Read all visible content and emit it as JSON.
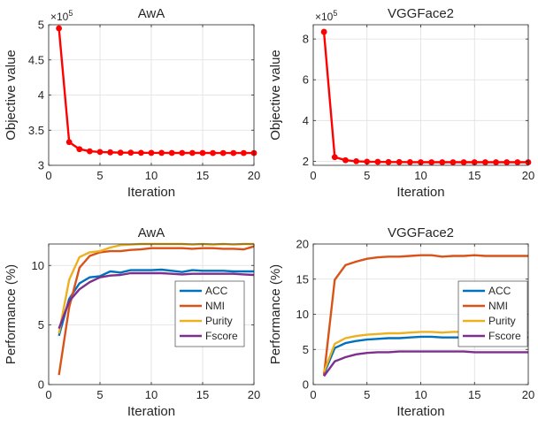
{
  "chart_data": [
    {
      "type": "line",
      "title": "AwA",
      "xlabel": "Iteration",
      "ylabel": "Objective value",
      "exponent_label": "×10^5",
      "exponent_base": "×10",
      "exponent_power": "5",
      "xlim": [
        0,
        20
      ],
      "ylim": [
        3,
        5
      ],
      "xticks": [
        0,
        5,
        10,
        15,
        20
      ],
      "yticks": [
        3,
        3.5,
        4,
        4.5,
        5
      ],
      "yticklabels": [
        "3",
        "3.5",
        "4",
        "4.5",
        "5"
      ],
      "grid": true,
      "x": [
        1,
        2,
        3,
        4,
        5,
        6,
        7,
        8,
        9,
        10,
        11,
        12,
        13,
        14,
        15,
        16,
        17,
        18,
        19,
        20
      ],
      "series": [
        {
          "color": "#ff0000",
          "marker": "circle",
          "values": [
            4.95,
            3.33,
            3.23,
            3.2,
            3.19,
            3.185,
            3.18,
            3.18,
            3.178,
            3.177,
            3.177,
            3.176,
            3.176,
            3.176,
            3.176,
            3.175,
            3.175,
            3.175,
            3.175,
            3.175
          ]
        }
      ]
    },
    {
      "type": "line",
      "title": "VGGFace2",
      "xlabel": "Iteration",
      "ylabel": "Objective value",
      "exponent_label": "×10^5",
      "exponent_base": "×10",
      "exponent_power": "5",
      "xlim": [
        0,
        20
      ],
      "ylim": [
        1.8,
        8.7
      ],
      "xticks": [
        0,
        5,
        10,
        15,
        20
      ],
      "yticks": [
        2,
        4,
        6,
        8
      ],
      "yticklabels": [
        "2",
        "4",
        "6",
        "8"
      ],
      "grid": true,
      "x": [
        1,
        2,
        3,
        4,
        5,
        6,
        7,
        8,
        9,
        10,
        11,
        12,
        13,
        14,
        15,
        16,
        17,
        18,
        19,
        20
      ],
      "series": [
        {
          "color": "#ff0000",
          "marker": "circle",
          "values": [
            8.35,
            2.2,
            2.05,
            2.0,
            1.98,
            1.97,
            1.96,
            1.96,
            1.955,
            1.95,
            1.95,
            1.95,
            1.95,
            1.95,
            1.95,
            1.95,
            1.95,
            1.95,
            1.95,
            1.95
          ]
        }
      ]
    },
    {
      "type": "line",
      "title": "AwA",
      "xlabel": "Iteration",
      "ylabel": "Performance (%)",
      "xlim": [
        0,
        20
      ],
      "ylim": [
        0,
        11.8
      ],
      "xticks": [
        0,
        5,
        10,
        15,
        20
      ],
      "yticks": [
        0,
        5,
        10
      ],
      "yticklabels": [
        "0",
        "5",
        "10"
      ],
      "grid": true,
      "legend": "right",
      "x": [
        1,
        2,
        3,
        4,
        5,
        6,
        7,
        8,
        9,
        10,
        11,
        12,
        13,
        14,
        15,
        16,
        17,
        18,
        19,
        20
      ],
      "series": [
        {
          "name": "ACC",
          "color": "#0072bd",
          "values": [
            4.1,
            7.2,
            8.5,
            9.0,
            9.1,
            9.5,
            9.4,
            9.6,
            9.6,
            9.6,
            9.65,
            9.55,
            9.45,
            9.6,
            9.55,
            9.55,
            9.55,
            9.5,
            9.5,
            9.5
          ]
        },
        {
          "name": "NMI",
          "color": "#d95319",
          "values": [
            0.8,
            6.5,
            9.8,
            10.8,
            11.1,
            11.2,
            11.2,
            11.3,
            11.35,
            11.45,
            11.45,
            11.45,
            11.45,
            11.4,
            11.45,
            11.45,
            11.4,
            11.4,
            11.35,
            11.6
          ]
        },
        {
          "name": "Purity",
          "color": "#edb120",
          "values": [
            4.3,
            8.8,
            10.7,
            11.1,
            11.2,
            11.5,
            11.7,
            11.75,
            11.8,
            11.8,
            11.8,
            11.8,
            11.8,
            11.75,
            11.8,
            11.75,
            11.8,
            11.75,
            11.8,
            11.8
          ]
        },
        {
          "name": "Fscore",
          "color": "#7e2f8e",
          "values": [
            4.7,
            7.0,
            8.0,
            8.6,
            9.0,
            9.15,
            9.2,
            9.35,
            9.35,
            9.35,
            9.35,
            9.3,
            9.25,
            9.3,
            9.3,
            9.3,
            9.3,
            9.3,
            9.25,
            9.2
          ]
        }
      ]
    },
    {
      "type": "line",
      "title": "VGGFace2",
      "xlabel": "Iteration",
      "ylabel": "Performance (%)",
      "xlim": [
        0,
        20
      ],
      "ylim": [
        0,
        20
      ],
      "xticks": [
        0,
        5,
        10,
        15,
        20
      ],
      "yticks": [
        0,
        5,
        10,
        15,
        20
      ],
      "yticklabels": [
        "0",
        "5",
        "10",
        "15",
        "20"
      ],
      "grid": true,
      "legend": "right",
      "x": [
        1,
        2,
        3,
        4,
        5,
        6,
        7,
        8,
        9,
        10,
        11,
        12,
        13,
        14,
        15,
        16,
        17,
        18,
        19,
        20
      ],
      "series": [
        {
          "name": "ACC",
          "color": "#0072bd",
          "values": [
            1.5,
            5.2,
            5.9,
            6.2,
            6.4,
            6.5,
            6.6,
            6.6,
            6.7,
            6.8,
            6.8,
            6.7,
            6.7,
            6.7,
            6.8,
            6.7,
            6.7,
            6.6,
            6.8,
            6.7
          ]
        },
        {
          "name": "NMI",
          "color": "#d95319",
          "values": [
            1.3,
            14.9,
            17.0,
            17.5,
            17.9,
            18.1,
            18.2,
            18.2,
            18.3,
            18.4,
            18.4,
            18.2,
            18.3,
            18.3,
            18.4,
            18.3,
            18.3,
            18.3,
            18.3,
            18.3
          ]
        },
        {
          "name": "Purity",
          "color": "#edb120",
          "values": [
            1.8,
            5.8,
            6.6,
            6.9,
            7.1,
            7.2,
            7.3,
            7.3,
            7.4,
            7.5,
            7.5,
            7.4,
            7.5,
            7.5,
            7.4,
            7.4,
            7.5,
            7.5,
            7.4,
            7.4
          ]
        },
        {
          "name": "Fscore",
          "color": "#7e2f8e",
          "values": [
            1.2,
            3.3,
            3.9,
            4.3,
            4.5,
            4.6,
            4.6,
            4.7,
            4.7,
            4.7,
            4.7,
            4.7,
            4.7,
            4.7,
            4.6,
            4.6,
            4.6,
            4.6,
            4.6,
            4.6
          ]
        }
      ]
    }
  ]
}
